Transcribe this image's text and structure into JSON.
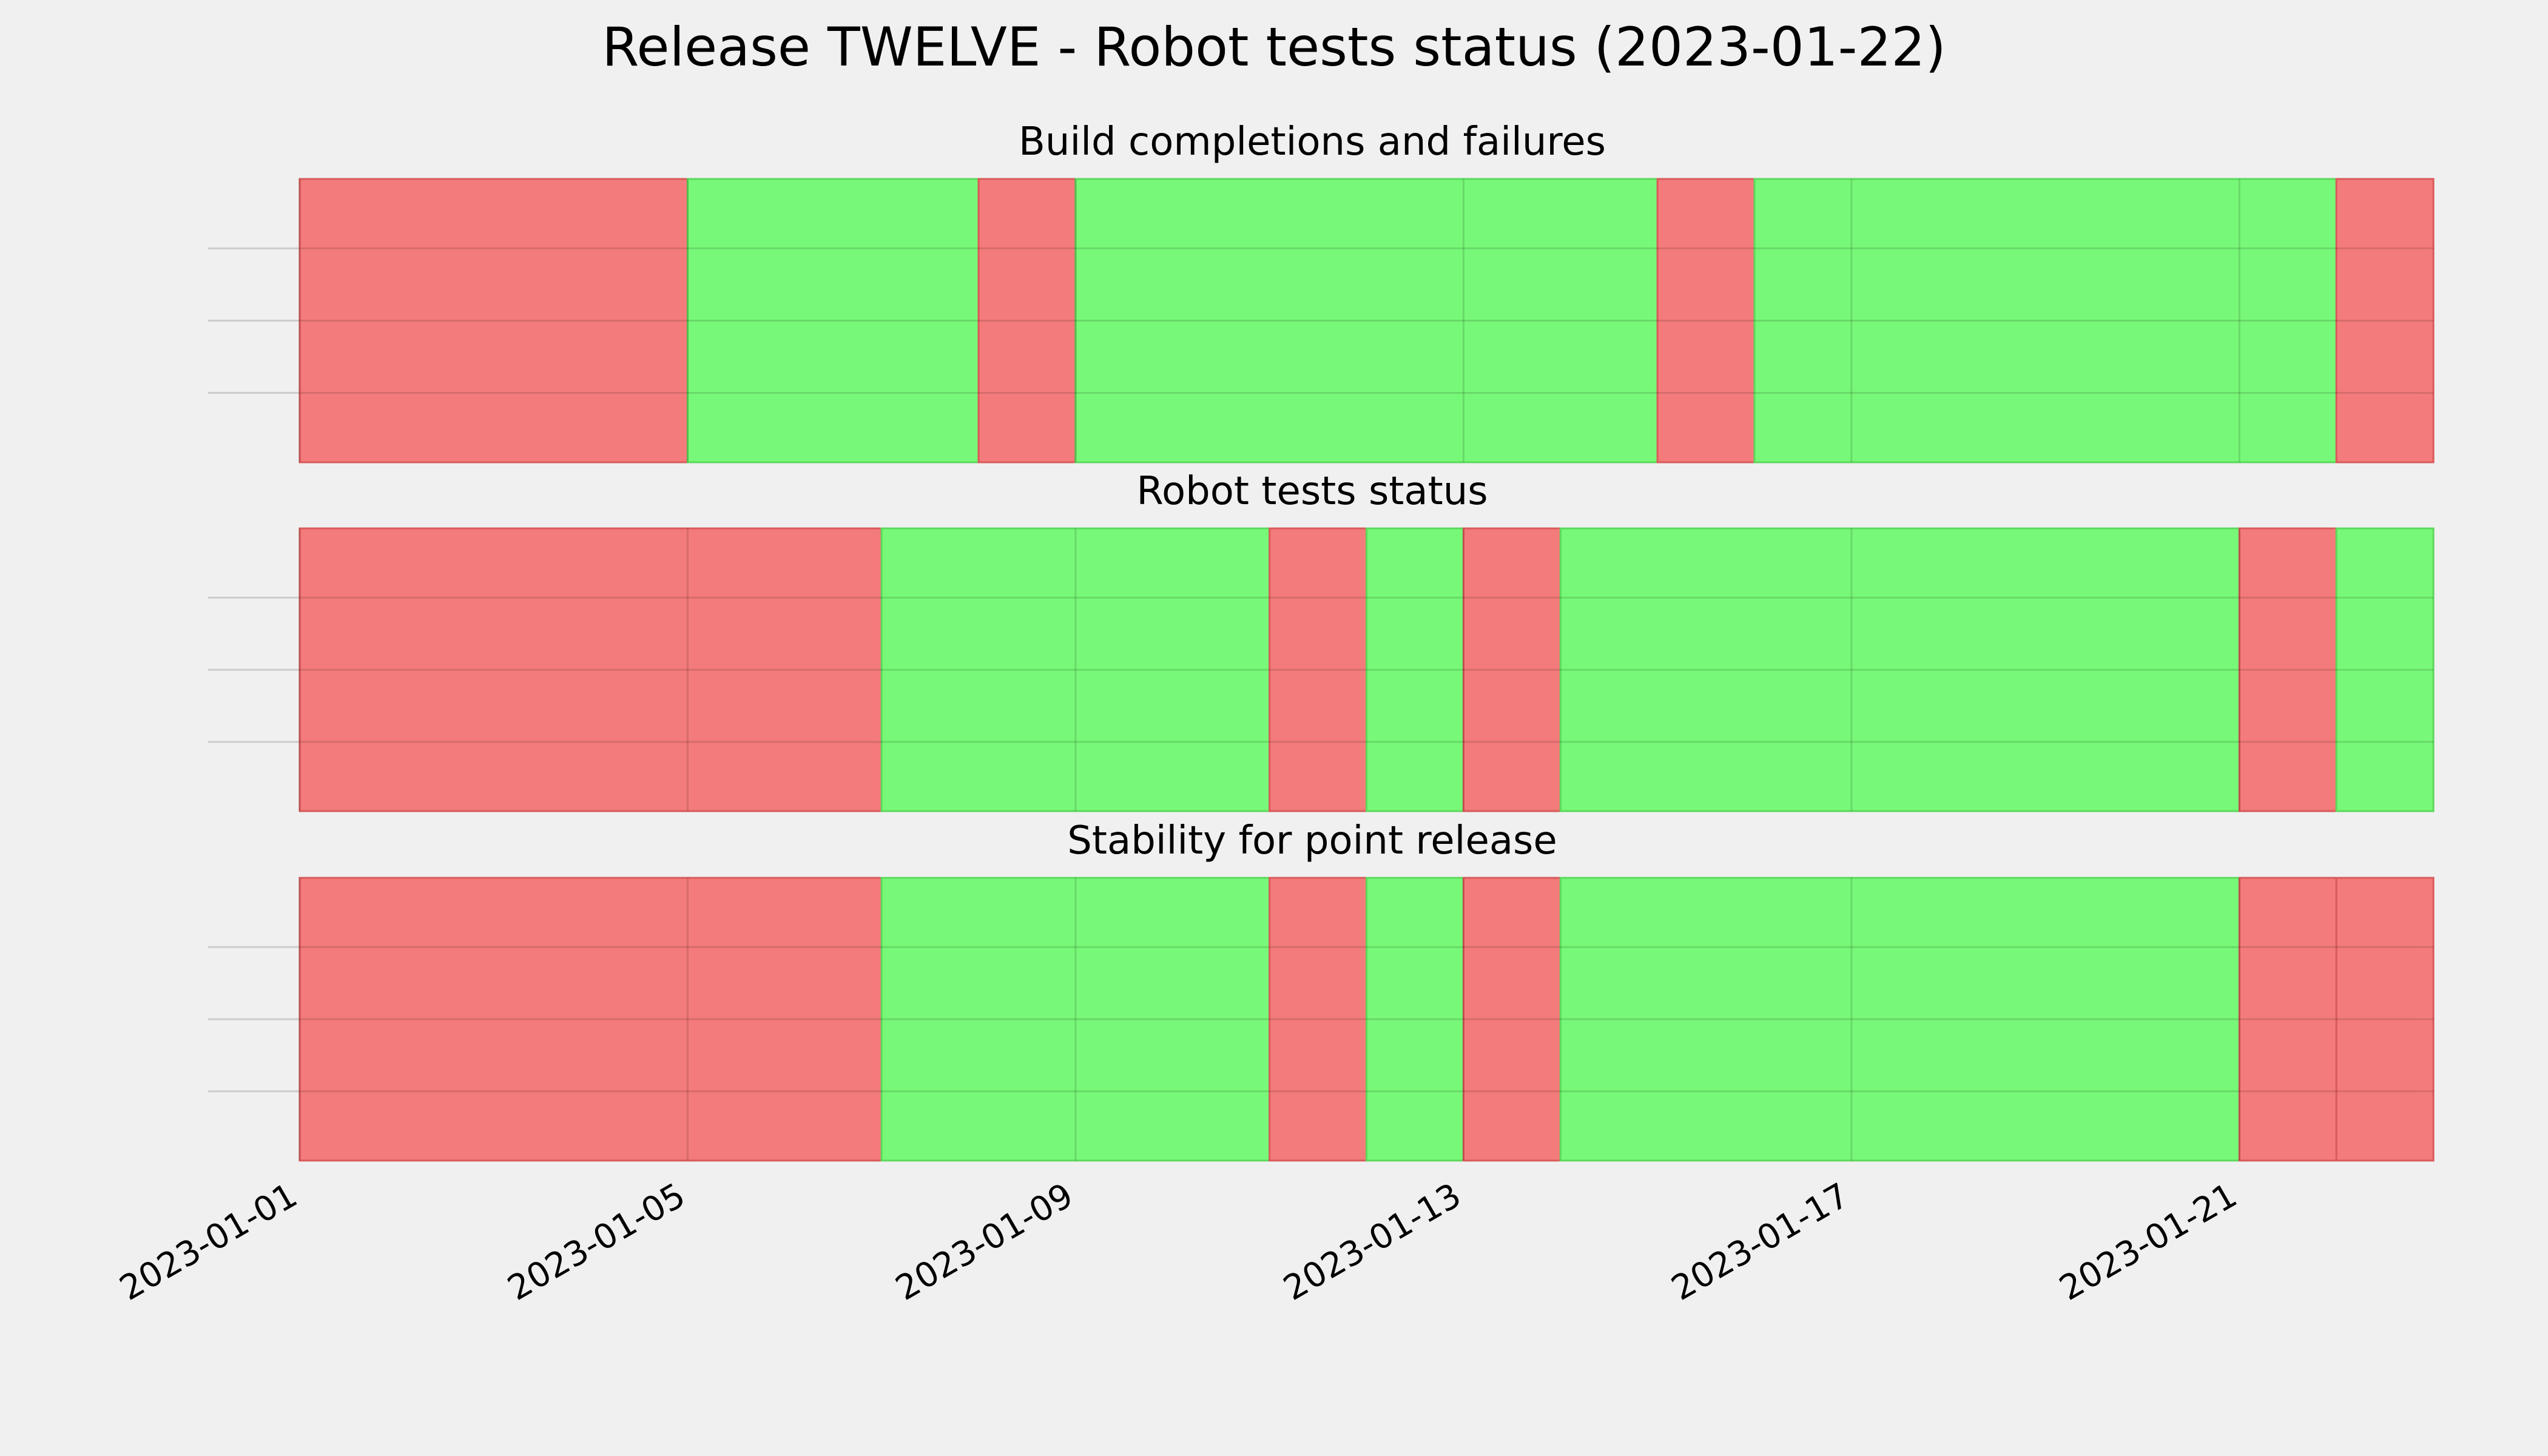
{
  "chart_data": {
    "type": "timeline",
    "title": "Release TWELVE - Robot tests status (2023-01-22)",
    "x_tick_labels": [
      "2023-01-01",
      "2023-01-05",
      "2023-01-09",
      "2023-01-13",
      "2023-01-17",
      "2023-01-21"
    ],
    "x_ticks": [
      "2023-01-01",
      "2023-01-05",
      "2023-01-09",
      "2023-01-13",
      "2023-01-17",
      "2023-01-21"
    ],
    "xlim": [
      "2023-01-01",
      "2023-01-23.75"
    ],
    "grid": true,
    "colors": {
      "pass": "#74f874",
      "fail": "#f47777",
      "background": "#f0f0f0",
      "grid": "#cbcbcb"
    },
    "panels": [
      {
        "title": "Build completions and failures",
        "segments": [
          {
            "start": "2023-01-01",
            "end": "2023-01-05",
            "status": "fail"
          },
          {
            "start": "2023-01-05",
            "end": "2023-01-08",
            "status": "pass"
          },
          {
            "start": "2023-01-08",
            "end": "2023-01-09",
            "status": "fail"
          },
          {
            "start": "2023-01-09",
            "end": "2023-01-15",
            "status": "pass"
          },
          {
            "start": "2023-01-15",
            "end": "2023-01-16",
            "status": "fail"
          },
          {
            "start": "2023-01-16",
            "end": "2023-01-22",
            "status": "pass"
          },
          {
            "start": "2023-01-22",
            "end": "2023-01-23",
            "status": "fail"
          }
        ]
      },
      {
        "title": "Robot tests status",
        "segments": [
          {
            "start": "2023-01-01",
            "end": "2023-01-07",
            "status": "fail"
          },
          {
            "start": "2023-01-07",
            "end": "2023-01-11",
            "status": "pass"
          },
          {
            "start": "2023-01-11",
            "end": "2023-01-12",
            "status": "fail"
          },
          {
            "start": "2023-01-12",
            "end": "2023-01-13",
            "status": "pass"
          },
          {
            "start": "2023-01-13",
            "end": "2023-01-14",
            "status": "fail"
          },
          {
            "start": "2023-01-14",
            "end": "2023-01-21",
            "status": "pass"
          },
          {
            "start": "2023-01-21",
            "end": "2023-01-22",
            "status": "fail"
          },
          {
            "start": "2023-01-22",
            "end": "2023-01-23",
            "status": "pass"
          }
        ]
      },
      {
        "title": "Stability for point release",
        "segments": [
          {
            "start": "2023-01-01",
            "end": "2023-01-07",
            "status": "fail"
          },
          {
            "start": "2023-01-07",
            "end": "2023-01-11",
            "status": "pass"
          },
          {
            "start": "2023-01-11",
            "end": "2023-01-12",
            "status": "fail"
          },
          {
            "start": "2023-01-12",
            "end": "2023-01-13",
            "status": "pass"
          },
          {
            "start": "2023-01-13",
            "end": "2023-01-14",
            "status": "fail"
          },
          {
            "start": "2023-01-14",
            "end": "2023-01-21",
            "status": "pass"
          },
          {
            "start": "2023-01-21",
            "end": "2023-01-22",
            "status": "fail"
          },
          {
            "start": "2023-01-22",
            "end": "2023-01-23",
            "status": "fail"
          }
        ]
      }
    ]
  }
}
